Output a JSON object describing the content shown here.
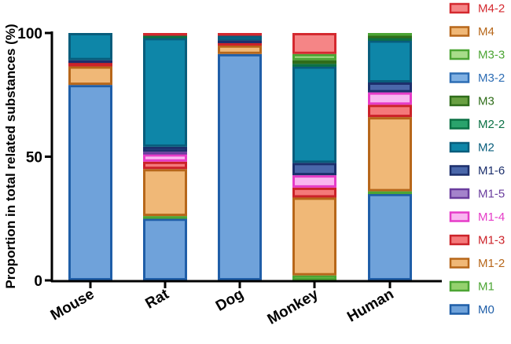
{
  "chart_data": {
    "type": "bar",
    "stacked": true,
    "title": "",
    "xlabel": "",
    "ylabel": "Proportion in total related substances (%)",
    "ylim": [
      0,
      100
    ],
    "yticks": [
      "0",
      "50",
      "100"
    ],
    "grid": false,
    "legend_position": "right",
    "categories": [
      "Mouse",
      "Rat",
      "Dog",
      "Monkey",
      "Human"
    ],
    "series": [
      {
        "name": "M0",
        "fill": "#6fa2da",
        "stroke": "#1f5ea8",
        "values": [
          79.0,
          25.0,
          91.5,
          0.0,
          35.0
        ]
      },
      {
        "name": "M1",
        "fill": "#95d16e",
        "stroke": "#4ca534",
        "values": [
          0.0,
          1.0,
          0.0,
          2.0,
          1.0
        ]
      },
      {
        "name": "M1-2",
        "fill": "#f0b877",
        "stroke": "#b7671a",
        "values": [
          7.5,
          19.0,
          3.5,
          31.5,
          30.0
        ]
      },
      {
        "name": "M1-3",
        "fill": "#f4797a",
        "stroke": "#cc2229",
        "values": [
          1.5,
          3.0,
          1.0,
          4.0,
          5.0
        ]
      },
      {
        "name": "M1-4",
        "fill": "#f9b5f0",
        "stroke": "#e63cc8",
        "values": [
          0.0,
          3.0,
          0.0,
          5.0,
          5.0
        ]
      },
      {
        "name": "M1-5",
        "fill": "#a483cb",
        "stroke": "#6a3d9e",
        "values": [
          0.0,
          1.0,
          0.0,
          0.0,
          0.0
        ]
      },
      {
        "name": "M1-6",
        "fill": "#4a67aa",
        "stroke": "#1c2f6c",
        "values": [
          1.0,
          2.0,
          1.0,
          5.0,
          4.0
        ]
      },
      {
        "name": "M2",
        "fill": "#0e86a8",
        "stroke": "#085d7c",
        "values": [
          11.0,
          44.0,
          2.0,
          39.0,
          17.0
        ]
      },
      {
        "name": "M2-2",
        "fill": "#2aa36c",
        "stroke": "#0b7145",
        "values": [
          0.0,
          1.0,
          0.0,
          1.0,
          1.0
        ]
      },
      {
        "name": "M3",
        "fill": "#69a042",
        "stroke": "#2f6d1a",
        "values": [
          0.0,
          0.0,
          0.0,
          1.5,
          1.0
        ]
      },
      {
        "name": "M3-2",
        "fill": "#7fb0e3",
        "stroke": "#2d6db4",
        "values": [
          0.0,
          0.0,
          0.0,
          0.0,
          0.0
        ]
      },
      {
        "name": "M3-3",
        "fill": "#a8dc8a",
        "stroke": "#4ca534",
        "values": [
          0.0,
          0.0,
          0.0,
          2.5,
          1.0
        ]
      },
      {
        "name": "M4",
        "fill": "#f0b877",
        "stroke": "#b7671a",
        "values": [
          0.0,
          0.0,
          0.0,
          0.0,
          0.0
        ]
      },
      {
        "name": "M4-2",
        "fill": "#f58586",
        "stroke": "#d4292f",
        "values": [
          0.0,
          1.0,
          1.0,
          8.5,
          0.0
        ]
      }
    ]
  }
}
